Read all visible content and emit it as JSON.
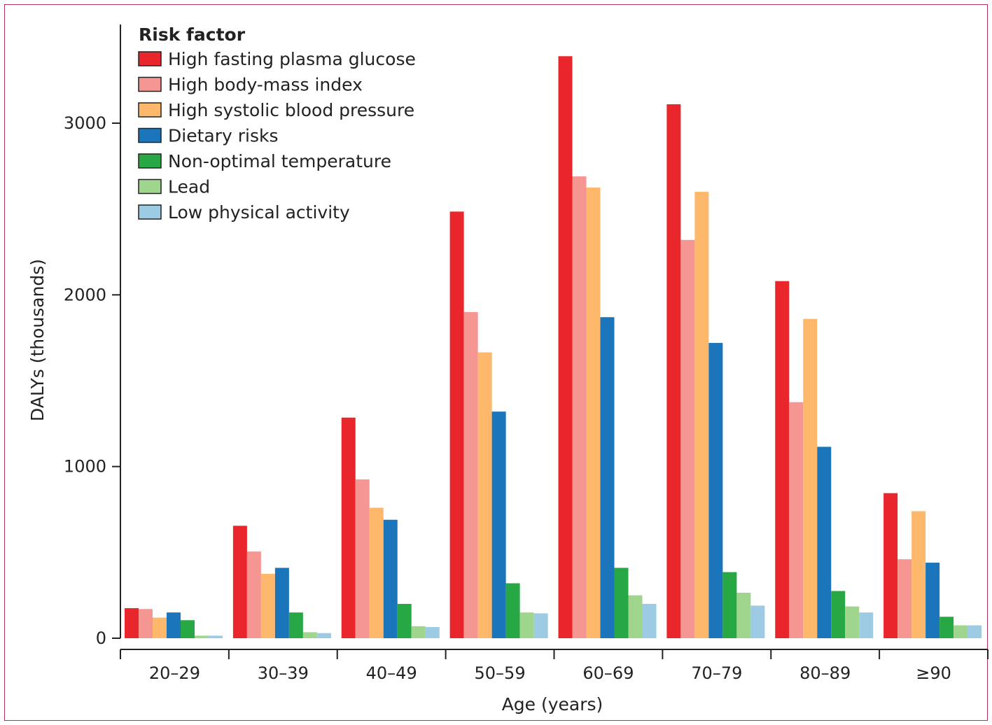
{
  "chart_data": {
    "type": "bar",
    "xlabel": "Age (years)",
    "ylabel": "DALYs (thousands)",
    "ylim": [
      0,
      3500
    ],
    "yticks": [
      0,
      1000,
      2000,
      3000
    ],
    "categories": [
      "20–29",
      "30–39",
      "40–49",
      "50–59",
      "60–69",
      "70–79",
      "80–89",
      "≥90"
    ],
    "legend": {
      "title": "Risk factor",
      "placement": "top-left"
    },
    "grid": false,
    "series": [
      {
        "name": "High fasting plasma glucose",
        "color": "#e8262b",
        "values": [
          175,
          655,
          1285,
          2485,
          3390,
          3110,
          2080,
          845
        ]
      },
      {
        "name": "High body-mass index",
        "color": "#f59692",
        "values": [
          170,
          505,
          925,
          1900,
          2690,
          2320,
          1375,
          460
        ]
      },
      {
        "name": "High systolic blood pressure",
        "color": "#fdb86b",
        "values": [
          120,
          375,
          760,
          1665,
          2625,
          2600,
          1860,
          740
        ]
      },
      {
        "name": "Dietary risks",
        "color": "#1b75bb",
        "values": [
          150,
          410,
          690,
          1320,
          1870,
          1720,
          1115,
          440
        ]
      },
      {
        "name": "Non-optimal temperature",
        "color": "#28a745",
        "values": [
          105,
          150,
          200,
          320,
          410,
          385,
          275,
          125
        ]
      },
      {
        "name": "Lead",
        "color": "#a0d58d",
        "values": [
          15,
          35,
          70,
          150,
          250,
          265,
          185,
          75
        ]
      },
      {
        "name": "Low physical activity",
        "color": "#9ccbe3",
        "values": [
          15,
          30,
          65,
          145,
          200,
          190,
          150,
          75
        ]
      }
    ]
  }
}
